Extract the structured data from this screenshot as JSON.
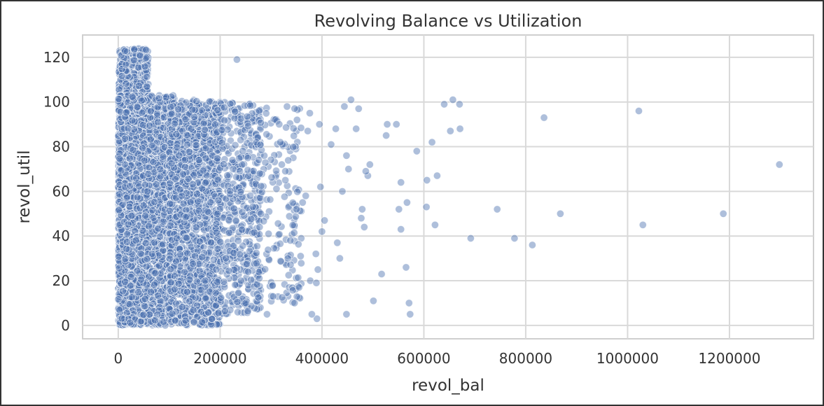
{
  "chart_data": {
    "type": "scatter",
    "title": "Revolving Balance vs Utilization",
    "xlabel": "revol_bal",
    "ylabel": "revol_util",
    "xlim": [
      -70000,
      1365000
    ],
    "ylim": [
      -6,
      130
    ],
    "x_ticks": [
      0,
      200000,
      400000,
      600000,
      800000,
      1000000,
      1200000
    ],
    "x_tick_labels": [
      "0",
      "200000",
      "400000",
      "600000",
      "800000",
      "1000000",
      "1200000"
    ],
    "y_ticks": [
      0,
      20,
      40,
      60,
      80,
      100,
      120
    ],
    "y_tick_labels": [
      "0",
      "20",
      "40",
      "60",
      "80",
      "100",
      "120"
    ],
    "grid": true,
    "marker_color": "#4c72b0",
    "marker_alpha": 0.45,
    "points": [
      [
        1298000,
        72
      ],
      [
        1188000,
        50
      ],
      [
        1030000,
        45
      ],
      [
        1022000,
        96
      ],
      [
        868000,
        50
      ],
      [
        836000,
        93
      ],
      [
        813000,
        36
      ],
      [
        778000,
        39
      ],
      [
        744000,
        52
      ],
      [
        692000,
        39
      ],
      [
        671000,
        88
      ],
      [
        670000,
        99
      ],
      [
        657000,
        101
      ],
      [
        652000,
        87
      ],
      [
        640000,
        99
      ],
      [
        626000,
        67
      ],
      [
        622000,
        45
      ],
      [
        616000,
        82
      ],
      [
        606000,
        65
      ],
      [
        605000,
        53
      ],
      [
        586000,
        78
      ],
      [
        573000,
        5
      ],
      [
        571000,
        10
      ],
      [
        567000,
        55
      ],
      [
        565000,
        26
      ],
      [
        555000,
        43
      ],
      [
        555000,
        64
      ],
      [
        551000,
        52
      ],
      [
        546000,
        90
      ],
      [
        528000,
        90
      ],
      [
        526000,
        85
      ],
      [
        517000,
        23
      ],
      [
        501000,
        11
      ],
      [
        494000,
        72
      ],
      [
        490000,
        67
      ],
      [
        486000,
        69
      ],
      [
        483000,
        44
      ],
      [
        479000,
        52
      ],
      [
        477000,
        48
      ],
      [
        472000,
        97
      ],
      [
        467000,
        88
      ],
      [
        457000,
        101
      ],
      [
        452000,
        70
      ],
      [
        448000,
        5
      ],
      [
        448000,
        76
      ],
      [
        444000,
        98
      ],
      [
        440000,
        60
      ],
      [
        435000,
        30
      ],
      [
        430000,
        37
      ],
      [
        427000,
        88
      ],
      [
        418000,
        81
      ],
      [
        405000,
        47
      ],
      [
        400000,
        42
      ],
      [
        397000,
        62
      ],
      [
        395000,
        90
      ],
      [
        392000,
        25
      ],
      [
        390000,
        3
      ],
      [
        380000,
        5
      ],
      [
        377000,
        20
      ],
      [
        388000,
        32
      ],
      [
        389000,
        19
      ],
      [
        376000,
        95
      ],
      [
        372000,
        87
      ],
      [
        368000,
        58
      ],
      [
        362000,
        55
      ],
      [
        358000,
        31
      ],
      [
        355000,
        17
      ],
      [
        350000,
        52
      ],
      [
        346000,
        10
      ],
      [
        338000,
        38
      ],
      [
        333000,
        30
      ],
      [
        328000,
        65
      ],
      [
        321000,
        72
      ],
      [
        316000,
        90
      ],
      [
        304000,
        13
      ],
      [
        292000,
        5
      ],
      [
        280000,
        50
      ],
      [
        233000,
        119
      ]
    ],
    "dense_clusters": [
      {
        "x_range": [
          0,
          60000
        ],
        "y_range": [
          0,
          124
        ],
        "count": 1800
      },
      {
        "x_range": [
          0,
          110000
        ],
        "y_range": [
          0,
          103
        ],
        "count": 2600
      },
      {
        "x_range": [
          100000,
          200000
        ],
        "y_range": [
          0,
          101
        ],
        "count": 1500
      },
      {
        "x_range": [
          190000,
          280000
        ],
        "y_range": [
          5,
          100
        ],
        "count": 500
      },
      {
        "x_range": [
          270000,
          360000
        ],
        "y_range": [
          10,
          98
        ],
        "count": 160
      }
    ]
  }
}
